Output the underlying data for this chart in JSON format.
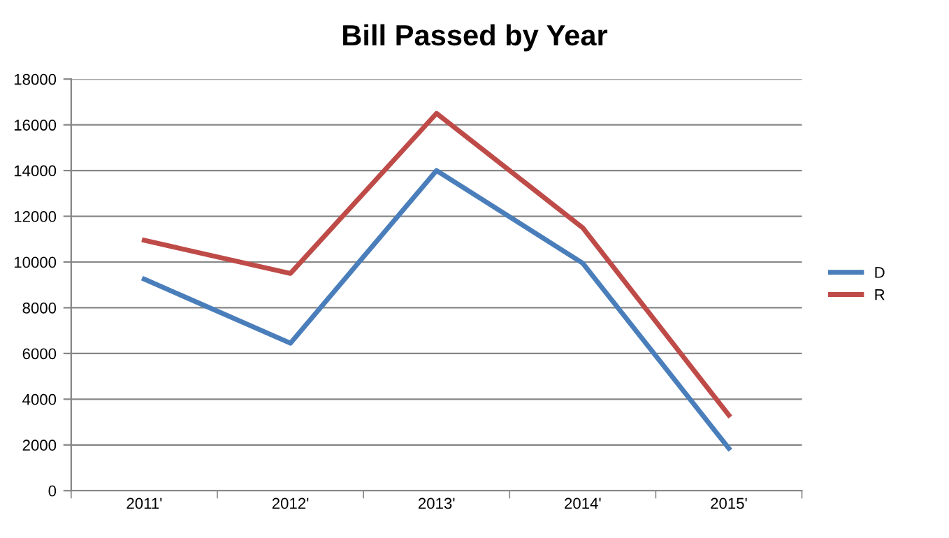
{
  "chart_data": {
    "type": "line",
    "title": "Bill Passed by Year",
    "categories": [
      "2011'",
      "2012'",
      "2013'",
      "2014'",
      "2015'"
    ],
    "series": [
      {
        "name": "D",
        "color": "#4a7ebb",
        "values": [
          9250,
          6450,
          14000,
          9950,
          1850
        ]
      },
      {
        "name": "R",
        "color": "#be4b48",
        "values": [
          10950,
          9500,
          16500,
          11500,
          3300
        ]
      }
    ],
    "ylim": [
      0,
      18000
    ],
    "yticks": [
      0,
      2000,
      4000,
      6000,
      8000,
      10000,
      12000,
      14000,
      16000,
      18000
    ],
    "grid": "y",
    "legend": "right",
    "marker": "none",
    "line_style": "solid"
  }
}
